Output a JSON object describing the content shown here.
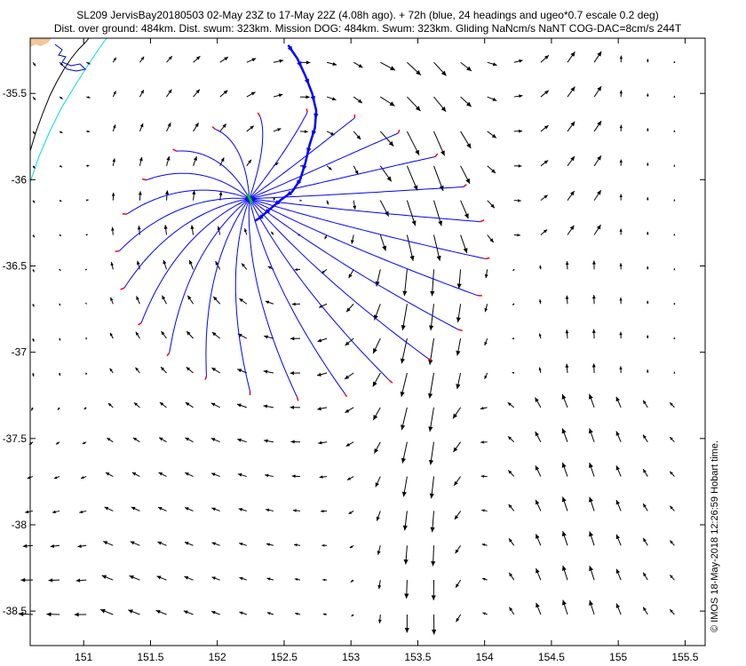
{
  "chart_data": {
    "type": "quiver-map",
    "title_line1": "SL209 JervisBay20180503 02-May 23Z to 17-May 22Z (4.08h ago). + 72h (blue, 24 headings and ugeo*0.7 escale 0.2 deg)",
    "title_line2": "Dist. over ground: 484km. Dist. swum: 323km. Mission DOG: 484km. Swum: 323km. Gliding NaNcm/s NaNT COG-DAC=8cm/s 244T",
    "credit": "© IMOS 18-May-2018 12:26:59 Hobart time.",
    "xlim": [
      150.6,
      155.65
    ],
    "ylim": [
      -38.7,
      -35.18
    ],
    "xticks": [
      151,
      151.5,
      152,
      152.5,
      153,
      153.5,
      154,
      154.5,
      155,
      155.5
    ],
    "xtick_labels": [
      "151",
      "151.5",
      "152",
      "152.5",
      "153",
      "153.5",
      "154",
      "154.5",
      "155",
      "155.5"
    ],
    "yticks": [
      -35.5,
      -36,
      -36.5,
      -37,
      -37.5,
      -38,
      -38.5
    ],
    "ytick_labels": [
      "-35.5",
      "-36",
      "-36.5",
      "-37",
      "-37.5",
      "-38",
      "-38.5"
    ],
    "grid": false,
    "colors": {
      "current_vectors": "#000000",
      "forecast_paths": "#0000ff",
      "path_ends": "#ff0000",
      "glider_track": "#0000ff",
      "glider_position": "#00cc00",
      "coastline": "#000000",
      "depth_contour": "#00dddd",
      "land": "#f2c79a"
    },
    "glider_position": [
      152.24,
      -36.11
    ],
    "forecast_paths_count": 24,
    "current_field": "eddy centred near 152.6E -36.2S with strong southward jet along 153.3E-153.8E"
  }
}
